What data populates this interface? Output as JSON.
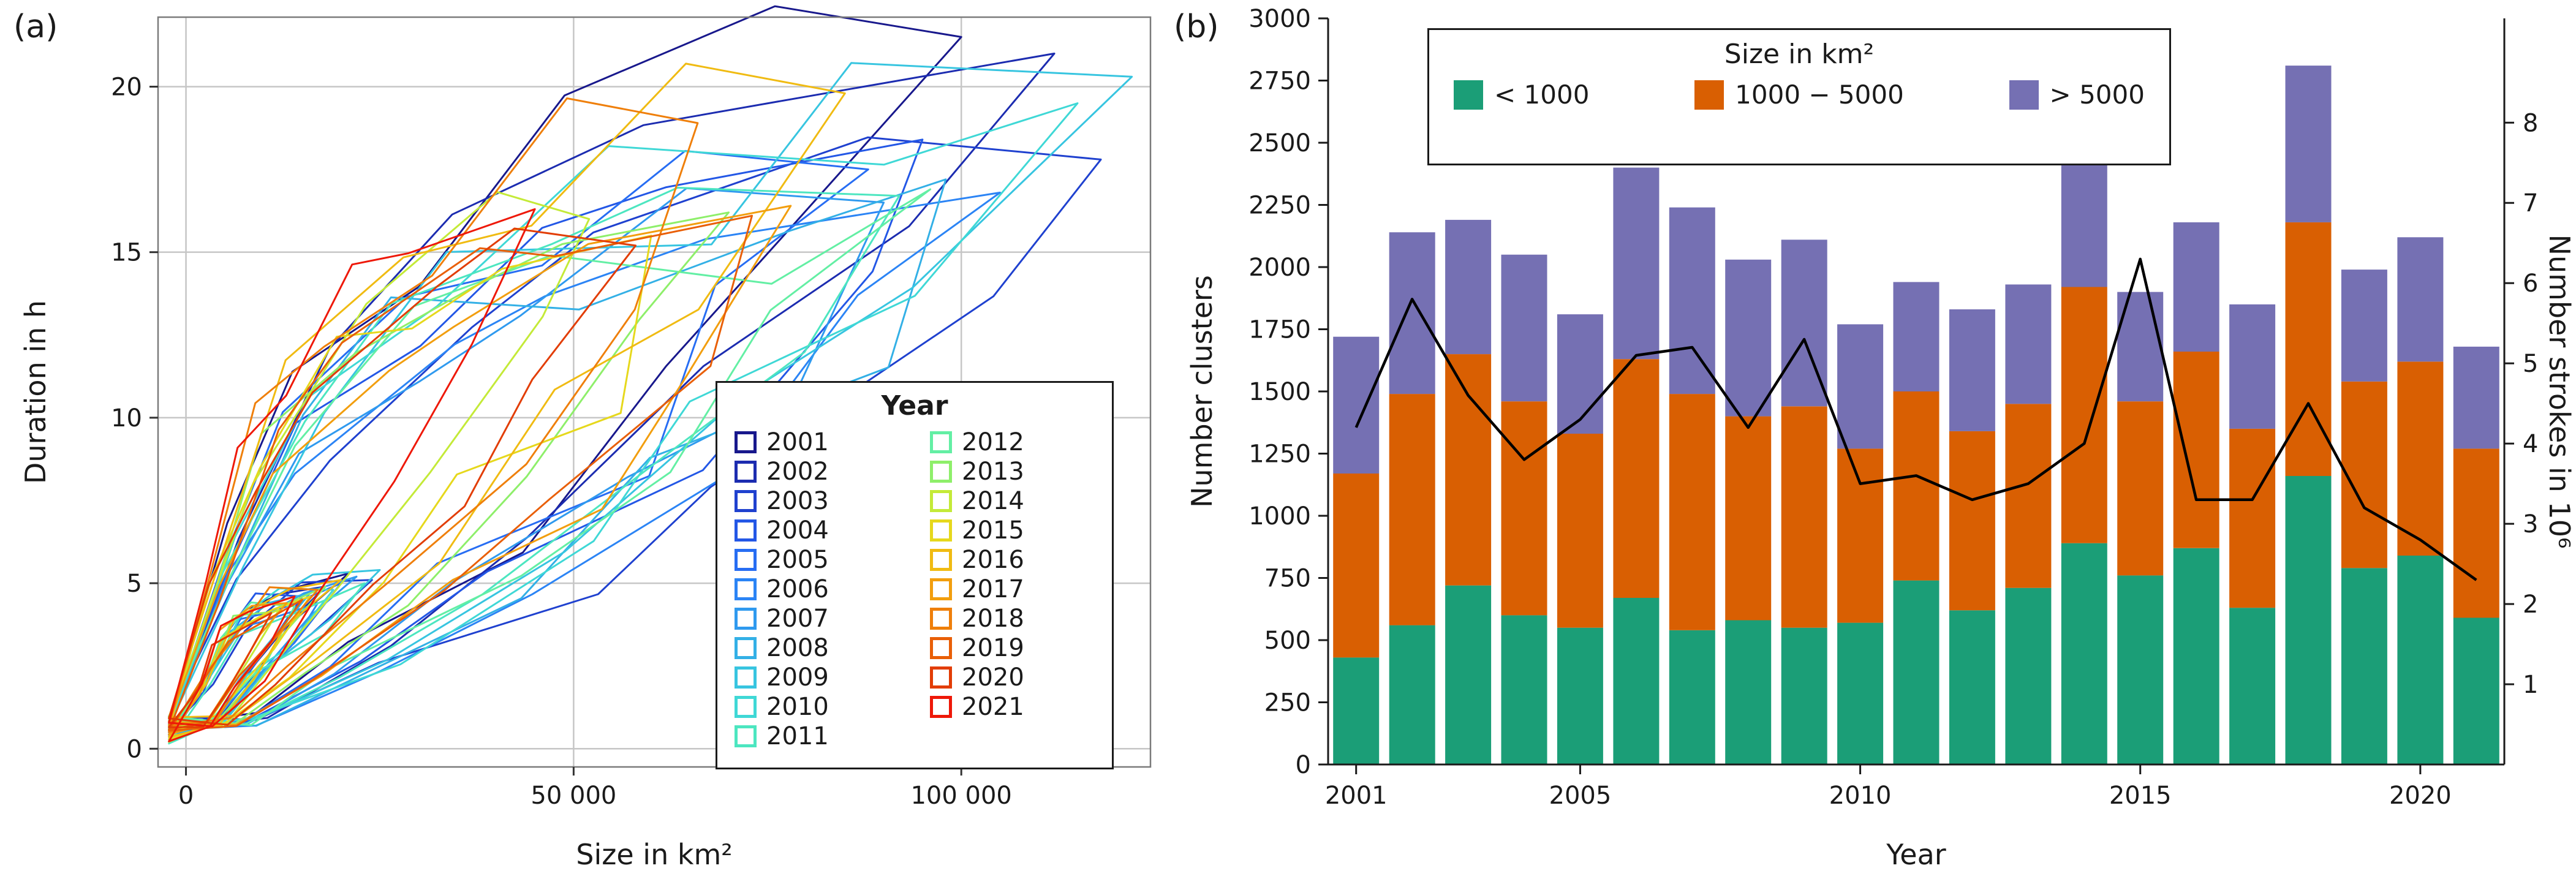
{
  "figure": {
    "panel_a_label": "(a)",
    "panel_b_label": "(b)"
  },
  "chart_data": [
    {
      "type": "line",
      "panel": "a",
      "xlabel": "Size in km²",
      "ylabel": "Duration in h",
      "legend_title": "Year",
      "legend_position": "inside-bottom-right",
      "grid": true,
      "xlim": [
        -3600,
        124400
      ],
      "ylim": [
        -0.55,
        22.1
      ],
      "xticks": [
        {
          "value": 0,
          "label": "0"
        },
        {
          "value": 50000,
          "label": "50 000"
        },
        {
          "value": 100000,
          "label": "100 000"
        }
      ],
      "yticks": [
        {
          "value": 0,
          "label": "0"
        },
        {
          "value": 5,
          "label": "5"
        },
        {
          "value": 10,
          "label": "10"
        },
        {
          "value": 15,
          "label": "15"
        },
        {
          "value": 20,
          "label": "20"
        }
      ],
      "series": [
        {
          "year": "2001",
          "color": "#18188c",
          "loop_max": [
            100000,
            21.5
          ],
          "inner_loop_max": [
            21000,
            5.3
          ]
        },
        {
          "year": "2002",
          "color": "#1c2cb0",
          "loop_max": [
            112000,
            21.0
          ],
          "inner_loop_max": [
            18000,
            4.9
          ]
        },
        {
          "year": "2003",
          "color": "#1f41cf",
          "loop_max": [
            118000,
            17.8
          ],
          "inner_loop_max": [
            24000,
            5.1
          ]
        },
        {
          "year": "2004",
          "color": "#2357e6",
          "loop_max": [
            95000,
            18.4
          ],
          "inner_loop_max": [
            15000,
            4.6
          ]
        },
        {
          "year": "2005",
          "color": "#276df3",
          "loop_max": [
            88000,
            17.5
          ],
          "inner_loop_max": [
            20000,
            5.0
          ]
        },
        {
          "year": "2006",
          "color": "#2b84f5",
          "loop_max": [
            105000,
            16.8
          ],
          "inner_loop_max": [
            17000,
            4.4
          ]
        },
        {
          "year": "2007",
          "color": "#2f9aef",
          "loop_max": [
            90000,
            16.5
          ],
          "inner_loop_max": [
            22000,
            5.2
          ]
        },
        {
          "year": "2008",
          "color": "#33b0e6",
          "loop_max": [
            98000,
            17.2
          ],
          "inner_loop_max": [
            16000,
            4.7
          ]
        },
        {
          "year": "2009",
          "color": "#37c5e0",
          "loop_max": [
            122000,
            20.3
          ],
          "inner_loop_max": [
            25000,
            5.4
          ]
        },
        {
          "year": "2010",
          "color": "#3fd8d6",
          "loop_max": [
            115000,
            19.5
          ],
          "inner_loop_max": [
            19000,
            4.8
          ]
        },
        {
          "year": "2011",
          "color": "#4ce6c0",
          "loop_max": [
            92000,
            16.7
          ],
          "inner_loop_max": [
            23000,
            5.0
          ]
        },
        {
          "year": "2012",
          "color": "#63efa4",
          "loop_max": [
            96000,
            16.9
          ],
          "inner_loop_max": [
            14000,
            4.3
          ]
        },
        {
          "year": "2013",
          "color": "#8eef6a",
          "loop_max": [
            70000,
            16.2
          ],
          "inner_loop_max": [
            18000,
            4.9
          ]
        },
        {
          "year": "2014",
          "color": "#c4ea38",
          "loop_max": [
            52000,
            16.0
          ],
          "inner_loop_max": [
            12000,
            4.2
          ]
        },
        {
          "year": "2015",
          "color": "#e6d81c",
          "loop_max": [
            60000,
            15.5
          ],
          "inner_loop_max": [
            16000,
            4.6
          ]
        },
        {
          "year": "2016",
          "color": "#f0bb12",
          "loop_max": [
            85000,
            19.8
          ],
          "inner_loop_max": [
            20000,
            5.1
          ]
        },
        {
          "year": "2017",
          "color": "#f29e0e",
          "loop_max": [
            78000,
            16.4
          ],
          "inner_loop_max": [
            13000,
            4.4
          ]
        },
        {
          "year": "2018",
          "color": "#ef7f0a",
          "loop_max": [
            66000,
            18.9
          ],
          "inner_loop_max": [
            17000,
            4.8
          ]
        },
        {
          "year": "2019",
          "color": "#e95f07",
          "loop_max": [
            73000,
            16.1
          ],
          "inner_loop_max": [
            15000,
            4.5
          ]
        },
        {
          "year": "2020",
          "color": "#e23d05",
          "loop_max": [
            58000,
            15.2
          ],
          "inner_loop_max": [
            11000,
            4.1
          ]
        },
        {
          "year": "2021",
          "color": "#ee1808",
          "loop_max": [
            45000,
            16.3
          ],
          "inner_loop_max": [
            14000,
            4.6
          ]
        }
      ]
    },
    {
      "type": "bar",
      "panel": "b",
      "subtype": "stacked-bar-with-line",
      "xlabel": "Year",
      "ylabel_left": "Number clusters",
      "ylabel_right": "Number strokes in 10⁶",
      "legend_title": "Size in km²",
      "legend_position": "inside-top",
      "categories": [
        2001,
        2002,
        2003,
        2004,
        2005,
        2006,
        2007,
        2008,
        2009,
        2010,
        2011,
        2012,
        2013,
        2014,
        2015,
        2016,
        2017,
        2018,
        2019,
        2020,
        2021
      ],
      "stack_series": [
        {
          "name": "< 1000",
          "color": "#1b9e77",
          "values": [
            430,
            560,
            720,
            600,
            550,
            670,
            540,
            580,
            550,
            570,
            740,
            620,
            710,
            890,
            760,
            870,
            630,
            1160,
            790,
            840,
            590
          ]
        },
        {
          "name": "1000 − 5000",
          "color": "#d95f02",
          "values": [
            740,
            930,
            930,
            860,
            780,
            960,
            950,
            820,
            890,
            700,
            760,
            720,
            740,
            1030,
            700,
            790,
            720,
            1020,
            750,
            780,
            680
          ]
        },
        {
          "name": "> 5000",
          "color": "#7570b3",
          "values": [
            550,
            650,
            540,
            590,
            480,
            770,
            750,
            630,
            670,
            500,
            440,
            490,
            480,
            550,
            440,
            520,
            500,
            630,
            450,
            500,
            410
          ]
        }
      ],
      "line_series": {
        "name": "Number strokes in 10⁶",
        "color": "#000000",
        "axis": "right",
        "values": [
          4.2,
          5.8,
          4.6,
          3.8,
          4.3,
          5.1,
          5.2,
          4.2,
          5.3,
          3.5,
          3.6,
          3.3,
          3.5,
          4.0,
          6.3,
          3.3,
          3.3,
          4.5,
          3.2,
          2.8,
          2.3
        ]
      },
      "ylim_left": [
        0,
        3000
      ],
      "yticks_left": [
        0,
        250,
        500,
        750,
        1000,
        1250,
        1500,
        1750,
        2000,
        2250,
        2500,
        2750,
        3000
      ],
      "ylim_right": [
        0,
        9.3
      ],
      "yticks_right": [
        1,
        2,
        3,
        4,
        5,
        6,
        7,
        8
      ],
      "xticks": [
        2001,
        2005,
        2010,
        2015,
        2020
      ]
    }
  ]
}
